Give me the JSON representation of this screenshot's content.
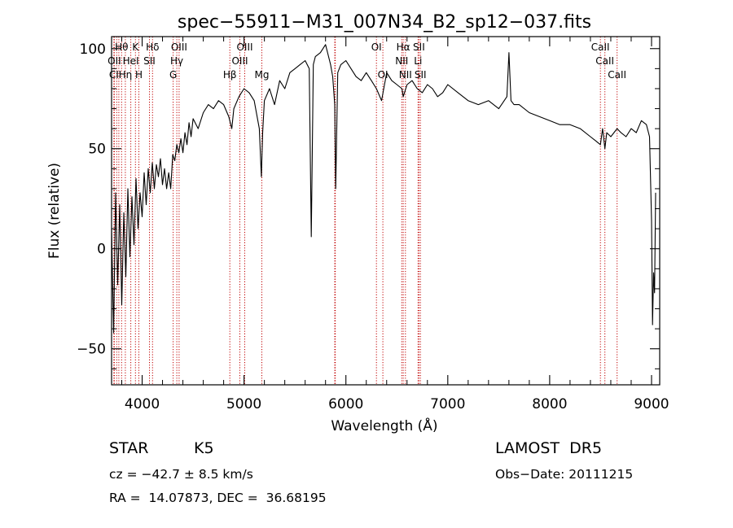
{
  "chart_data": {
    "type": "line",
    "title": "spec−55911−M31_007N34_B2_sp12−037.fits",
    "xlabel": "Wavelength (Å)",
    "ylabel": "Flux (relative)",
    "xlim": [
      3700,
      9080
    ],
    "ylim": [
      -68,
      106
    ],
    "xticks": [
      {
        "value": 4000,
        "label": "4000"
      },
      {
        "value": 5000,
        "label": "5000"
      },
      {
        "value": 6000,
        "label": "6000"
      },
      {
        "value": 7000,
        "label": "7000"
      },
      {
        "value": 8000,
        "label": "8000"
      },
      {
        "value": 9000,
        "label": "9000"
      }
    ],
    "yticks": [
      {
        "value": -50,
        "label": "−50"
      },
      {
        "value": 0,
        "label": "0"
      },
      {
        "value": 50,
        "label": "50"
      },
      {
        "value": 100,
        "label": "100"
      }
    ],
    "line_color": "#000000",
    "marker_color": "#c00000",
    "series": [
      {
        "x": [
          3700,
          3720,
          3740,
          3760,
          3780,
          3800,
          3820,
          3840,
          3860,
          3880,
          3900,
          3920,
          3940,
          3960,
          3980,
          4000,
          4020,
          4040,
          4060,
          4080,
          4100,
          4120,
          4140,
          4160,
          4180,
          4200,
          4220,
          4240,
          4260,
          4280,
          4300,
          4320,
          4340,
          4360,
          4380,
          4400,
          4420,
          4440,
          4460,
          4480,
          4500,
          4550,
          4600,
          4650,
          4700,
          4750,
          4800,
          4850,
          4880,
          4900,
          4950,
          5000,
          5050,
          5100,
          5150,
          5170,
          5183,
          5200,
          5250,
          5300,
          5350,
          5400,
          5450,
          5500,
          5550,
          5600,
          5640,
          5660,
          5680,
          5700,
          5750,
          5800,
          5850,
          5870,
          5890,
          5900,
          5920,
          5950,
          6000,
          6050,
          6100,
          6150,
          6200,
          6250,
          6300,
          6350,
          6400,
          6450,
          6500,
          6550,
          6563,
          6600,
          6650,
          6700,
          6750,
          6800,
          6850,
          6900,
          6950,
          7000,
          7100,
          7200,
          7300,
          7400,
          7500,
          7580,
          7600,
          7620,
          7650,
          7700,
          7800,
          7900,
          8000,
          8100,
          8200,
          8300,
          8400,
          8450,
          8498,
          8520,
          8542,
          8560,
          8600,
          8662,
          8700,
          8750,
          8800,
          8850,
          8900,
          8950,
          8980,
          9000,
          9010,
          9020,
          9030,
          9040
        ],
        "y": [
          10,
          -42,
          28,
          -18,
          22,
          -28,
          18,
          -14,
          30,
          -4,
          26,
          2,
          35,
          10,
          28,
          16,
          38,
          22,
          40,
          28,
          43,
          30,
          42,
          36,
          45,
          32,
          40,
          30,
          38,
          30,
          47,
          44,
          52,
          48,
          55,
          48,
          58,
          52,
          63,
          56,
          65,
          60,
          68,
          72,
          70,
          74,
          72,
          66,
          60,
          70,
          76,
          80,
          78,
          74,
          60,
          36,
          58,
          74,
          80,
          72,
          84,
          80,
          88,
          90,
          92,
          94,
          90,
          6,
          92,
          96,
          98,
          102,
          92,
          86,
          72,
          30,
          88,
          92,
          94,
          90,
          86,
          84,
          88,
          84,
          80,
          74,
          88,
          84,
          82,
          80,
          76,
          82,
          84,
          80,
          78,
          82,
          80,
          76,
          78,
          82,
          78,
          74,
          72,
          74,
          70,
          76,
          98,
          74,
          72,
          72,
          68,
          66,
          64,
          62,
          62,
          60,
          56,
          54,
          52,
          60,
          50,
          58,
          56,
          60,
          58,
          56,
          60,
          58,
          64,
          62,
          56,
          14,
          -38,
          -12,
          -22,
          28
        ]
      }
    ],
    "line_markers": [
      {
        "label": "Hθ",
        "x": 3798,
        "row": 1
      },
      {
        "label": "K",
        "x": 3934,
        "row": 1
      },
      {
        "label": "Hδ",
        "x": 4102,
        "row": 1
      },
      {
        "label": "OIII",
        "x": 4363,
        "row": 1
      },
      {
        "label": "OIII",
        "x": 5007,
        "row": 1
      },
      {
        "label": "OI",
        "x": 6300,
        "row": 1
      },
      {
        "label": "Hα",
        "x": 6563,
        "row": 1
      },
      {
        "label": "SII",
        "x": 6717,
        "row": 1
      },
      {
        "label": "CaII",
        "x": 8498,
        "row": 1
      },
      {
        "label": "OII",
        "x": 3727,
        "row": 2
      },
      {
        "label": "HeI",
        "x": 3889,
        "row": 2
      },
      {
        "label": "SII",
        "x": 4072,
        "row": 2
      },
      {
        "label": "Hγ",
        "x": 4340,
        "row": 2
      },
      {
        "label": "OIII",
        "x": 4959,
        "row": 2
      },
      {
        "label": "NII",
        "x": 6548,
        "row": 2
      },
      {
        "label": "Li",
        "x": 6708,
        "row": 2
      },
      {
        "label": "CaII",
        "x": 8542,
        "row": 2
      },
      {
        "label": "CI",
        "x": 3722,
        "row": 3
      },
      {
        "label": "Hη",
        "x": 3835,
        "row": 3
      },
      {
        "label": "H",
        "x": 3968,
        "row": 3
      },
      {
        "label": "G",
        "x": 4304,
        "row": 3
      },
      {
        "label": "Hβ",
        "x": 4861,
        "row": 3
      },
      {
        "label": "Mg",
        "x": 5175,
        "row": 3
      },
      {
        "label": "OI",
        "x": 6363,
        "row": 3
      },
      {
        "label": "NII",
        "x": 6584,
        "row": 3
      },
      {
        "label": "SII",
        "x": 6731,
        "row": 3
      },
      {
        "label": "CaII",
        "x": 8662,
        "row": 3
      }
    ],
    "extra_marker_lines": [
      3750,
      3771,
      5890,
      5896
    ]
  },
  "info": {
    "obj_class": "STAR",
    "subclass": "K5",
    "survey": "LAMOST  DR5",
    "cz": "cz = −42.7 ± 8.5 km/s",
    "obs_date": "Obs−Date: 20111215",
    "radec": "RA =  14.07873, DEC =  36.68195"
  }
}
